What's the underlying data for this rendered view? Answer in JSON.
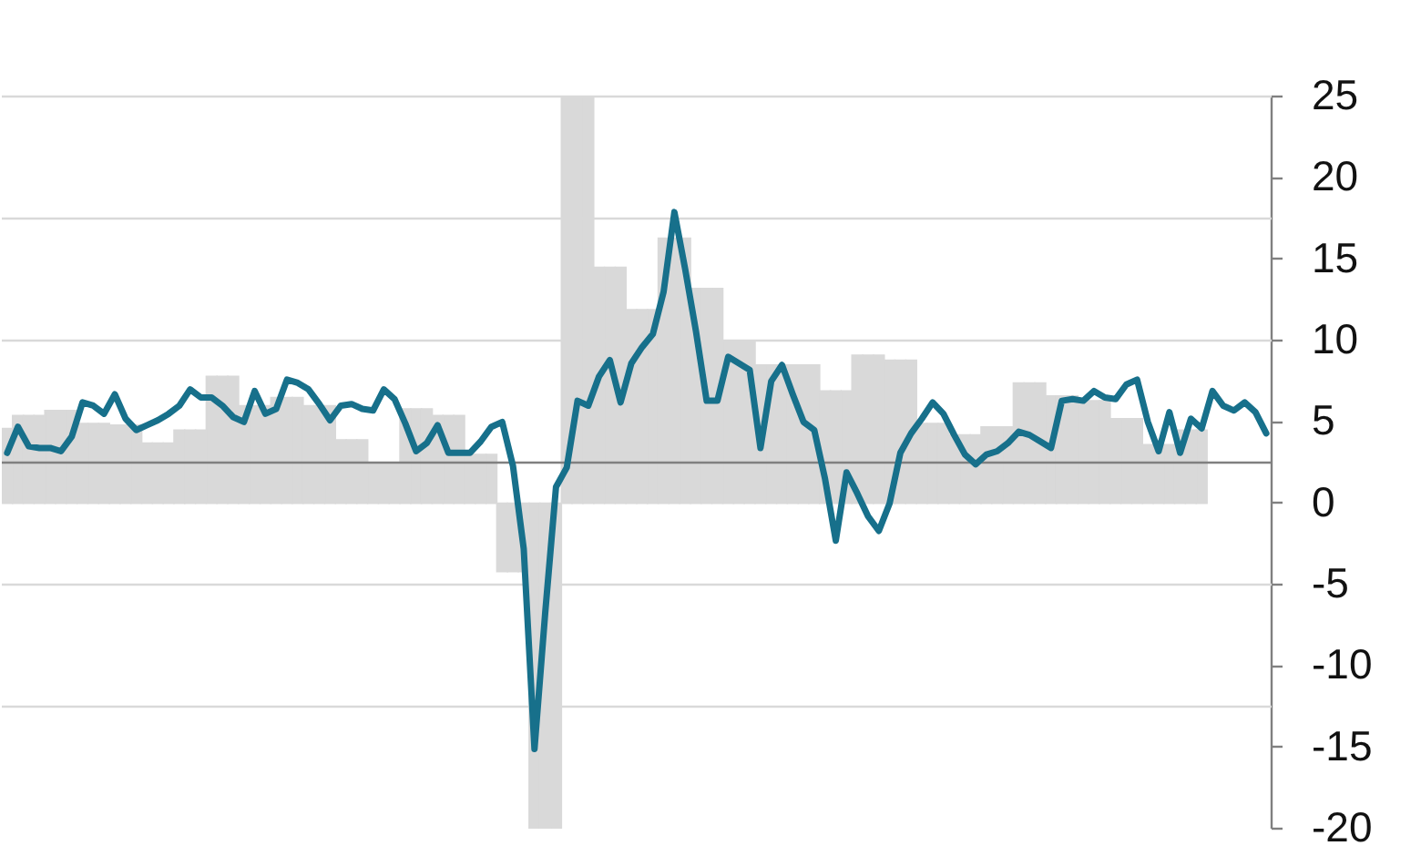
{
  "chart_data": {
    "type": "line",
    "categories": [
      null,
      null,
      null,
      null,
      null,
      null,
      null,
      null,
      null,
      null,
      null,
      null,
      null,
      null,
      null,
      null,
      null,
      null,
      null,
      null,
      null,
      null,
      null,
      null,
      null,
      null,
      null,
      null,
      null,
      null,
      null,
      null,
      null,
      null,
      null,
      null,
      null,
      null,
      null,
      null,
      null,
      null,
      null,
      null,
      null,
      null,
      null,
      null,
      null,
      null,
      null,
      null,
      null,
      null,
      null,
      null,
      null,
      null,
      null,
      null,
      null,
      null,
      null,
      null,
      null,
      null,
      null,
      null,
      null,
      null,
      null,
      null,
      null,
      null,
      null,
      null,
      null,
      null,
      null,
      null,
      null,
      null,
      null,
      null,
      null,
      null,
      null,
      null,
      null,
      null,
      null,
      null,
      null,
      null,
      null,
      null,
      null,
      null,
      null,
      null,
      null,
      null,
      null,
      null,
      null,
      null,
      null,
      null,
      null,
      null,
      null,
      null,
      null,
      null,
      null,
      null,
      null,
      null
    ],
    "series": [
      {
        "type": "bar",
        "color": "#d9d9d9",
        "values": [
          4.6,
          5.4,
          5.4,
          5.4,
          5.7,
          5.7,
          5.7,
          4.9,
          4.9,
          4.9,
          4.8,
          4.8,
          4.8,
          3.7,
          3.7,
          3.7,
          4.5,
          4.5,
          4.5,
          7.8,
          7.8,
          7.8,
          6.0,
          6.0,
          6.0,
          6.5,
          6.5,
          6.5,
          6.0,
          6.0,
          6.0,
          3.9,
          3.9,
          3.9,
          2.4,
          2.4,
          2.4,
          5.8,
          5.8,
          5.8,
          5.4,
          5.4,
          5.4,
          3.0,
          3.0,
          3.0,
          -4.2,
          -4.2,
          -4.2,
          -20,
          -20,
          -20,
          25,
          25,
          25,
          14.5,
          14.5,
          14.5,
          11.9,
          11.9,
          11.9,
          16.3,
          16.3,
          16.3,
          13.2,
          13.2,
          13.2,
          10.0,
          10.0,
          10.0,
          8.5,
          8.5,
          8.5,
          8.5,
          8.5,
          8.5,
          6.9,
          6.9,
          6.9,
          9.1,
          9.1,
          9.1,
          8.8,
          8.8,
          8.8,
          4.9,
          4.9,
          4.9,
          4.2,
          4.2,
          4.2,
          4.7,
          4.7,
          4.7,
          7.4,
          7.4,
          7.4,
          6.6,
          6.6,
          6.6,
          6.3,
          6.3,
          6.3,
          5.2,
          5.2,
          5.2,
          3.6,
          3.6,
          3.6,
          4.5,
          4.5,
          4.5,
          null,
          null,
          null,
          null,
          null,
          null
        ]
      },
      {
        "color": "#17708b",
        "values": [
          3.1,
          4.7,
          3.5,
          3.4,
          3.4,
          3.2,
          4.1,
          6.2,
          6.0,
          5.5,
          6.7,
          5.2,
          4.5,
          4.8,
          5.1,
          5.5,
          6.0,
          7.0,
          6.5,
          6.5,
          6.0,
          5.3,
          5.0,
          6.9,
          5.5,
          5.8,
          7.6,
          7.4,
          7.0,
          6.1,
          5.1,
          6.0,
          6.1,
          5.8,
          5.7,
          7.0,
          6.4,
          4.9,
          3.2,
          3.7,
          4.8,
          3.1,
          3.1,
          3.1,
          3.8,
          4.7,
          5.0,
          2.3,
          -2.8,
          -15.1,
          -6.7,
          1.0,
          2.2,
          6.3,
          6.0,
          7.8,
          8.8,
          6.2,
          8.6,
          9.6,
          10.4,
          13.0,
          17.9,
          14.4,
          10.6,
          6.3,
          6.3,
          9.0,
          8.6,
          8.2,
          3.4,
          7.5,
          8.5,
          6.7,
          5.0,
          4.5,
          1.5,
          -2.3,
          1.9,
          0.6,
          -0.8,
          -1.7,
          0.0,
          3.1,
          4.3,
          5.2,
          6.2,
          5.5,
          4.2,
          3.0,
          2.4,
          3.0,
          3.2,
          3.7,
          4.4,
          4.2,
          3.8,
          3.4,
          6.3,
          6.4,
          6.3,
          6.9,
          6.5,
          6.4,
          7.3,
          7.6,
          5.0,
          3.2,
          5.6,
          3.1,
          5.2,
          4.6,
          6.9,
          6.0,
          5.7,
          6.2,
          5.6,
          4.3
        ]
      }
    ],
    "ylim": [
      -20,
      25
    ],
    "yticks": [
      -20,
      -15,
      -10,
      -5,
      0,
      5,
      10,
      15,
      20,
      25
    ],
    "tick_labels": "y",
    "ref_lines": [
      {
        "axis": "y",
        "value": 2.5,
        "color": "#808080"
      },
      {
        "axis": "y",
        "value": 17.5,
        "color": "#d9d9d9"
      },
      {
        "axis": "y",
        "value": 10,
        "color": "#d9d9d9"
      },
      {
        "axis": "y",
        "value": -5,
        "color": "#d9d9d9"
      },
      {
        "axis": "y",
        "value": -12.5,
        "color": "#d9d9d9"
      }
    ]
  }
}
